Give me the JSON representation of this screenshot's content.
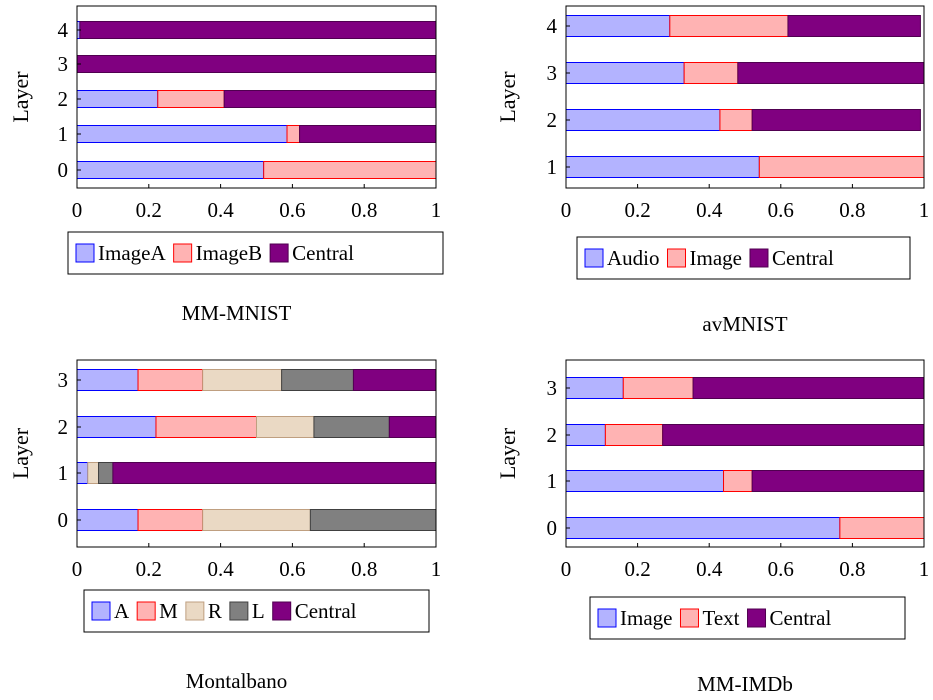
{
  "colors": {
    "blue_fill": "#b3b3ff",
    "blue_stroke": "#0000ff",
    "red_fill": "#ffb3b3",
    "red_stroke": "#ff0000",
    "tan_fill": "#ead9c4",
    "tan_stroke": "#bf9f80",
    "gray_fill": "#808080",
    "gray_stroke": "#404040",
    "purple_fill": "#800080",
    "purple_stroke": "#500050"
  },
  "chart_data": [
    {
      "type": "bar",
      "orientation": "horizontal",
      "stacked": true,
      "title": "MM-MNIST",
      "ylabel": "Layer",
      "xlabel": "",
      "xlim": [
        0,
        1
      ],
      "xticks": [
        "0",
        "0.2",
        "0.4",
        "0.6",
        "0.8",
        "1"
      ],
      "categories": [
        "0",
        "1",
        "2",
        "3",
        "4"
      ],
      "legend_position": "bottom",
      "series": [
        {
          "name": "ImageA",
          "color": "blue",
          "values": [
            0.52,
            0.585,
            0.225,
            0.0,
            0.008
          ]
        },
        {
          "name": "ImageB",
          "color": "red",
          "values": [
            0.48,
            0.035,
            0.185,
            0.0,
            0.0
          ]
        },
        {
          "name": "Central",
          "color": "purple",
          "values": [
            0.0,
            0.38,
            0.59,
            1.0,
            0.992
          ]
        }
      ]
    },
    {
      "type": "bar",
      "orientation": "horizontal",
      "stacked": true,
      "title": "avMNIST",
      "ylabel": "Layer",
      "xlabel": "",
      "xlim": [
        0,
        1
      ],
      "xticks": [
        "0",
        "0.2",
        "0.4",
        "0.6",
        "0.8",
        "1"
      ],
      "categories": [
        "1",
        "2",
        "3",
        "4"
      ],
      "legend_position": "bottom",
      "series": [
        {
          "name": "Audio",
          "color": "blue",
          "values": [
            0.54,
            0.43,
            0.33,
            0.29
          ]
        },
        {
          "name": "Image",
          "color": "red",
          "values": [
            0.46,
            0.09,
            0.15,
            0.33
          ]
        },
        {
          "name": "Central",
          "color": "purple",
          "values": [
            0.0,
            0.47,
            0.52,
            0.37
          ]
        }
      ]
    },
    {
      "type": "bar",
      "orientation": "horizontal",
      "stacked": true,
      "title": "Montalbano",
      "ylabel": "Layer",
      "xlabel": "",
      "xlim": [
        0,
        1
      ],
      "xticks": [
        "0",
        "0.2",
        "0.4",
        "0.6",
        "0.8",
        "1"
      ],
      "categories": [
        "0",
        "1",
        "2",
        "3"
      ],
      "legend_position": "bottom",
      "series": [
        {
          "name": "A",
          "color": "blue",
          "values": [
            0.17,
            0.03,
            0.22,
            0.17
          ]
        },
        {
          "name": "M",
          "color": "red",
          "values": [
            0.18,
            0.0,
            0.28,
            0.18
          ]
        },
        {
          "name": "R",
          "color": "tan",
          "values": [
            0.3,
            0.03,
            0.16,
            0.22
          ]
        },
        {
          "name": "L",
          "color": "gray",
          "values": [
            0.35,
            0.04,
            0.21,
            0.2
          ]
        },
        {
          "name": "Central",
          "color": "purple",
          "values": [
            0.0,
            0.9,
            0.13,
            0.23
          ]
        }
      ]
    },
    {
      "type": "bar",
      "orientation": "horizontal",
      "stacked": true,
      "title": "MM-IMDb",
      "ylabel": "Layer",
      "xlabel": "",
      "xlim": [
        0,
        1
      ],
      "xticks": [
        "0",
        "0.2",
        "0.4",
        "0.6",
        "0.8",
        "1"
      ],
      "categories": [
        "0",
        "1",
        "2",
        "3"
      ],
      "legend_position": "bottom",
      "series": [
        {
          "name": "Image",
          "color": "blue",
          "values": [
            0.765,
            0.44,
            0.11,
            0.16
          ]
        },
        {
          "name": "Text",
          "color": "red",
          "values": [
            0.235,
            0.08,
            0.16,
            0.195
          ]
        },
        {
          "name": "Central",
          "color": "purple",
          "values": [
            0.0,
            0.48,
            0.73,
            0.645
          ]
        }
      ]
    }
  ]
}
